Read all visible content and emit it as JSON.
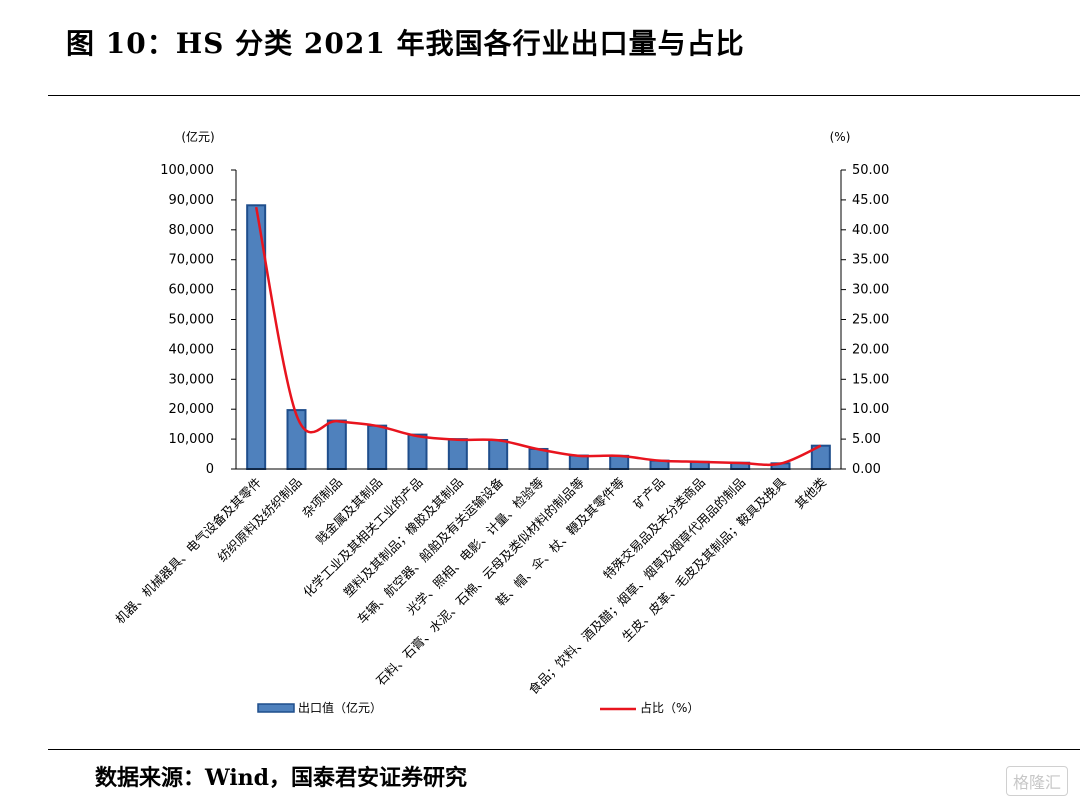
{
  "header": {
    "title": "图 10：HS 分类 2021 年我国各行业出口量与占比"
  },
  "footer": {
    "source": "数据来源：Wind，国泰君安证券研究",
    "watermark": "格隆汇"
  },
  "colors": {
    "bar_fill": "#4f81bd",
    "bar_stroke": "#1f4e8c",
    "line": "#e8141e"
  },
  "chart_data": {
    "type": "bar",
    "left_unit": "(亿元)",
    "right_unit": "(%)",
    "left_ylim": [
      0,
      100000
    ],
    "right_ylim": [
      0,
      50
    ],
    "left_ticks": [
      "0",
      "10,000",
      "20,000",
      "30,000",
      "40,000",
      "50,000",
      "60,000",
      "70,000",
      "80,000",
      "90,000",
      "100,000"
    ],
    "right_ticks": [
      "0.00",
      "5.00",
      "10.00",
      "15.00",
      "20.00",
      "25.00",
      "30.00",
      "35.00",
      "40.00",
      "45.00",
      "50.00"
    ],
    "categories": [
      "机器、机械器具、电气设备及其零件",
      "纺织原料及纺织制品",
      "杂项制品",
      "贱金属及其制品",
      "化学工业及其相关工业的产品",
      "塑料及其制品；橡胶及其制品",
      "车辆、航空器、船舶及有关运输设备",
      "光学、照相、电影、计量、检验等",
      "石料、石膏、水泥、石棉、云母及类似材料的制品等",
      "鞋、帽、伞、杖、鞭及其零件等",
      "矿产品",
      "特殊交易品及未分类商品",
      "食品；饮料、酒及醋；烟草、烟草及烟草代用品的制品",
      "生皮、皮革、毛皮及其制品；鞍具及挽具",
      "其他类"
    ],
    "series": [
      {
        "name": "出口值（亿元）",
        "type": "bar",
        "axis": "left",
        "values": [
          88200,
          19700,
          16200,
          14500,
          11500,
          10000,
          9700,
          6700,
          4500,
          4400,
          2800,
          2400,
          2100,
          1900,
          7800
        ]
      },
      {
        "name": "占比（%）",
        "type": "line",
        "axis": "right",
        "values": [
          43.8,
          9.0,
          8.0,
          7.2,
          5.5,
          4.9,
          4.8,
          3.3,
          2.2,
          2.2,
          1.4,
          1.2,
          1.0,
          0.9,
          3.9
        ]
      }
    ],
    "legend": {
      "bar_label": "出口值（亿元）",
      "line_label": "占比（%）",
      "position": "bottom"
    }
  }
}
